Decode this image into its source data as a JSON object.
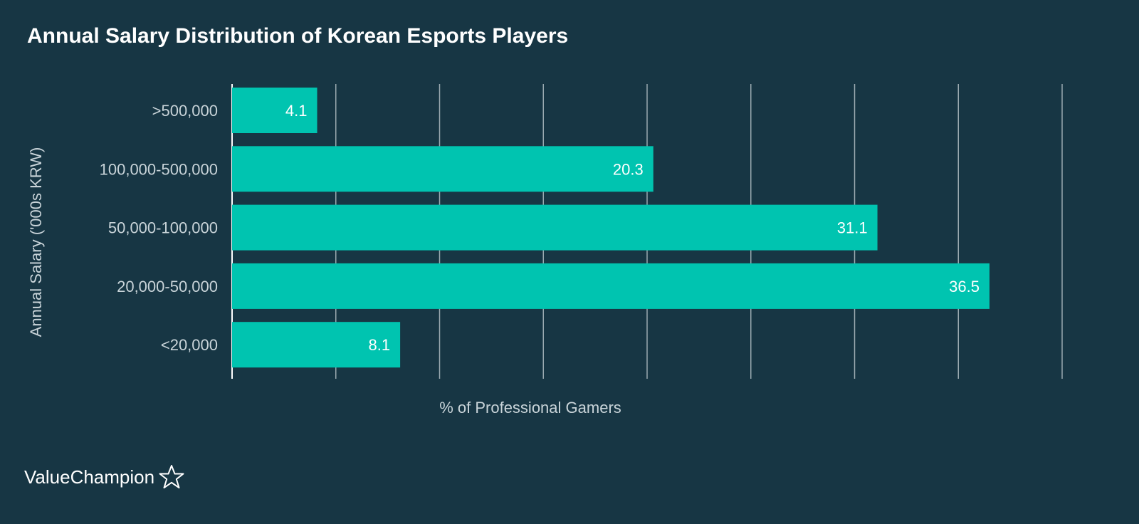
{
  "chart_data": {
    "type": "bar",
    "orientation": "horizontal",
    "title": "Annual Salary Distribution of Korean Esports Players",
    "xlabel": "% of Professional Gamers",
    "ylabel": "Annual Salary ('000s KRW)",
    "categories": [
      ">500,000",
      "100,000-500,000",
      "50,000-100,000",
      "20,000-50,000",
      "<20,000"
    ],
    "values": [
      4.1,
      20.3,
      31.1,
      36.5,
      8.1
    ],
    "value_labels": [
      "4.1",
      "20.3",
      "31.1",
      "36.5",
      "8.1"
    ],
    "xlim": [
      0,
      40
    ],
    "grid": true,
    "bar_color": "#00c4b0",
    "grid_color": "#9aa9b0",
    "background": "#173644"
  },
  "brand": {
    "name": "ValueChampion",
    "icon": "star-outline-icon"
  }
}
